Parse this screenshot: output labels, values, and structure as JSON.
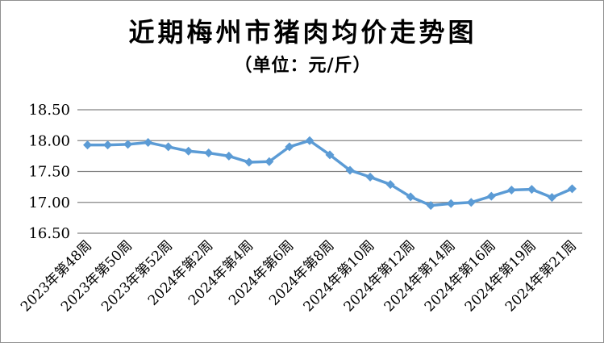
{
  "title": "近期梅州市猪肉均价走势图",
  "subtitle": "（单位：元/斤）",
  "chart_data": {
    "type": "line",
    "title": "近期梅州市猪肉均价走势图",
    "subtitle": "（单位：元/斤）",
    "x_tick_labels": [
      "2023年第48周",
      "2023年第50周",
      "2023年第52周",
      "2024年第2周",
      "2024年第4周",
      "2024年第6周",
      "2024年第8周",
      "2024年第10周",
      "2024年第12周",
      "2024年第14周",
      "2024年第16周",
      "2024年第19周",
      "2024年第21周"
    ],
    "tick_every": 2,
    "values": [
      17.93,
      17.93,
      17.94,
      17.97,
      17.9,
      17.83,
      17.8,
      17.75,
      17.65,
      17.66,
      17.9,
      18.0,
      17.77,
      17.52,
      17.41,
      17.29,
      17.09,
      16.95,
      16.98,
      17.0,
      17.1,
      17.2,
      17.21,
      17.08,
      17.22
    ],
    "ylim": [
      16.5,
      18.5
    ],
    "y_ticks": [
      18.5,
      18.0,
      17.5,
      17.0,
      16.5
    ],
    "y_tick_format_decimals": 2,
    "line_color": "#5B9BD5",
    "marker": "diamond",
    "gridline_color": "#848484",
    "grid": "horizontal",
    "legend": "none",
    "x_label_rotation_deg": -45
  }
}
